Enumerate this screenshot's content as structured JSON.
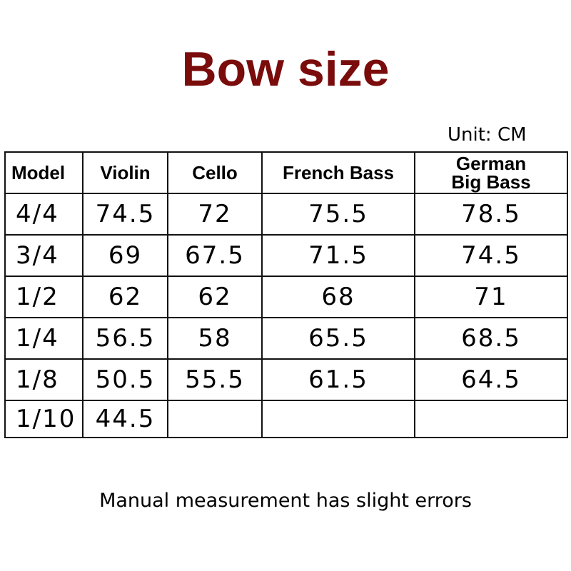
{
  "title": "Bow size",
  "unit": "Unit: CM",
  "table": {
    "headers": [
      "Model",
      "Violin",
      "Cello",
      "French Bass",
      "German Big Bass"
    ],
    "german_header_lines": [
      "German",
      "Big Bass"
    ],
    "rows": [
      [
        "4/4",
        "74.5",
        "72",
        "75.5",
        "78.5"
      ],
      [
        "3/4",
        "69",
        "67.5",
        "71.5",
        "74.5"
      ],
      [
        "1/2",
        "62",
        "62",
        "68",
        "71"
      ],
      [
        "1/4",
        "56.5",
        "58",
        "65.5",
        "68.5"
      ],
      [
        "1/8",
        "50.5",
        "55.5",
        "61.5",
        "64.5"
      ],
      [
        "1/10",
        "44.5",
        "",
        "",
        ""
      ]
    ]
  },
  "note": "Manual measurement has slight errors",
  "colors": {
    "title": "#7a0c0c"
  }
}
